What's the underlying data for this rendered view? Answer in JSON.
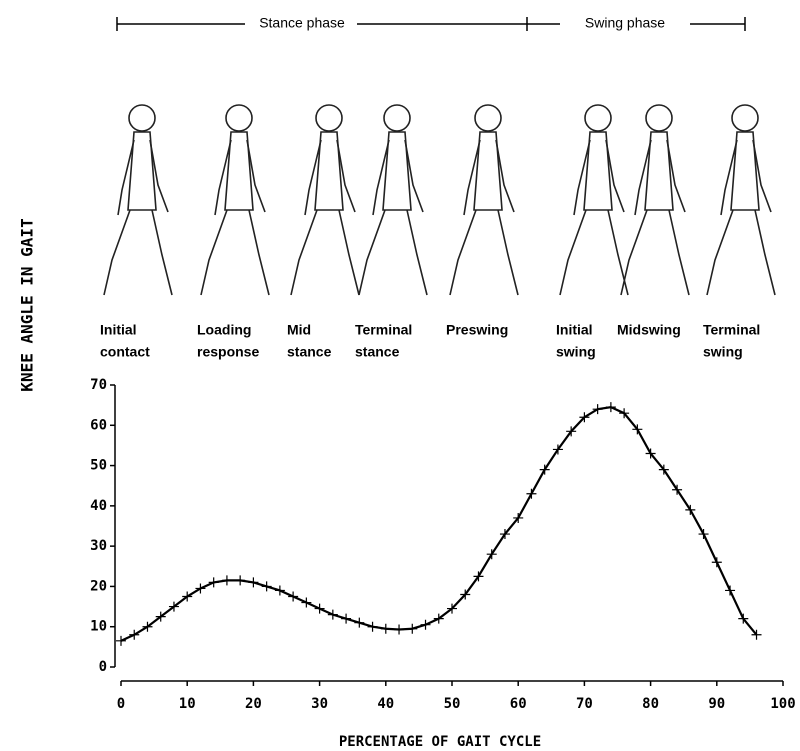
{
  "chart_data": {
    "type": "line",
    "phases": [
      "Stance phase",
      "Swing phase"
    ],
    "events": [
      [
        "Initial",
        "contact"
      ],
      [
        "Loading",
        "response"
      ],
      [
        "Mid",
        "stance"
      ],
      [
        "Terminal",
        "stance"
      ],
      [
        "Preswing"
      ],
      [
        "Initial",
        "swing"
      ],
      [
        "Midswing"
      ],
      [
        "Terminal",
        "swing"
      ]
    ],
    "ylabel": "KNEE ANGLE IN GAIT",
    "xlabel": "PERCENTAGE OF GAIT CYCLE",
    "x": [
      0,
      2,
      4,
      6,
      8,
      10,
      12,
      14,
      16,
      18,
      20,
      22,
      24,
      26,
      28,
      30,
      32,
      34,
      36,
      38,
      40,
      42,
      44,
      46,
      48,
      50,
      52,
      54,
      56,
      58,
      60,
      62,
      64,
      66,
      68,
      70,
      72,
      74,
      76,
      78,
      80,
      82,
      84,
      86,
      88,
      90,
      92,
      94,
      96
    ],
    "series": [
      {
        "color": "#000000",
        "values": [
          6.5,
          8,
          10,
          12.5,
          15,
          17.5,
          19.5,
          21,
          21.5,
          21.5,
          21,
          20,
          19,
          17.5,
          16,
          14.5,
          13,
          12,
          11,
          10,
          9.5,
          9.3,
          9.5,
          10.5,
          12,
          14.5,
          18,
          22.5,
          28,
          33,
          37,
          43,
          49,
          54,
          58.5,
          62,
          64,
          64.5,
          63,
          59,
          53,
          49,
          44,
          39,
          33,
          26,
          19,
          12,
          8
        ]
      }
    ],
    "xlim": [
      0,
      100
    ],
    "xticks": [
      0,
      10,
      20,
      30,
      40,
      50,
      60,
      70,
      80,
      90,
      100
    ],
    "ylim": [
      0,
      70
    ],
    "yticks": [
      0,
      10,
      20,
      30,
      40,
      50,
      60,
      70
    ]
  }
}
